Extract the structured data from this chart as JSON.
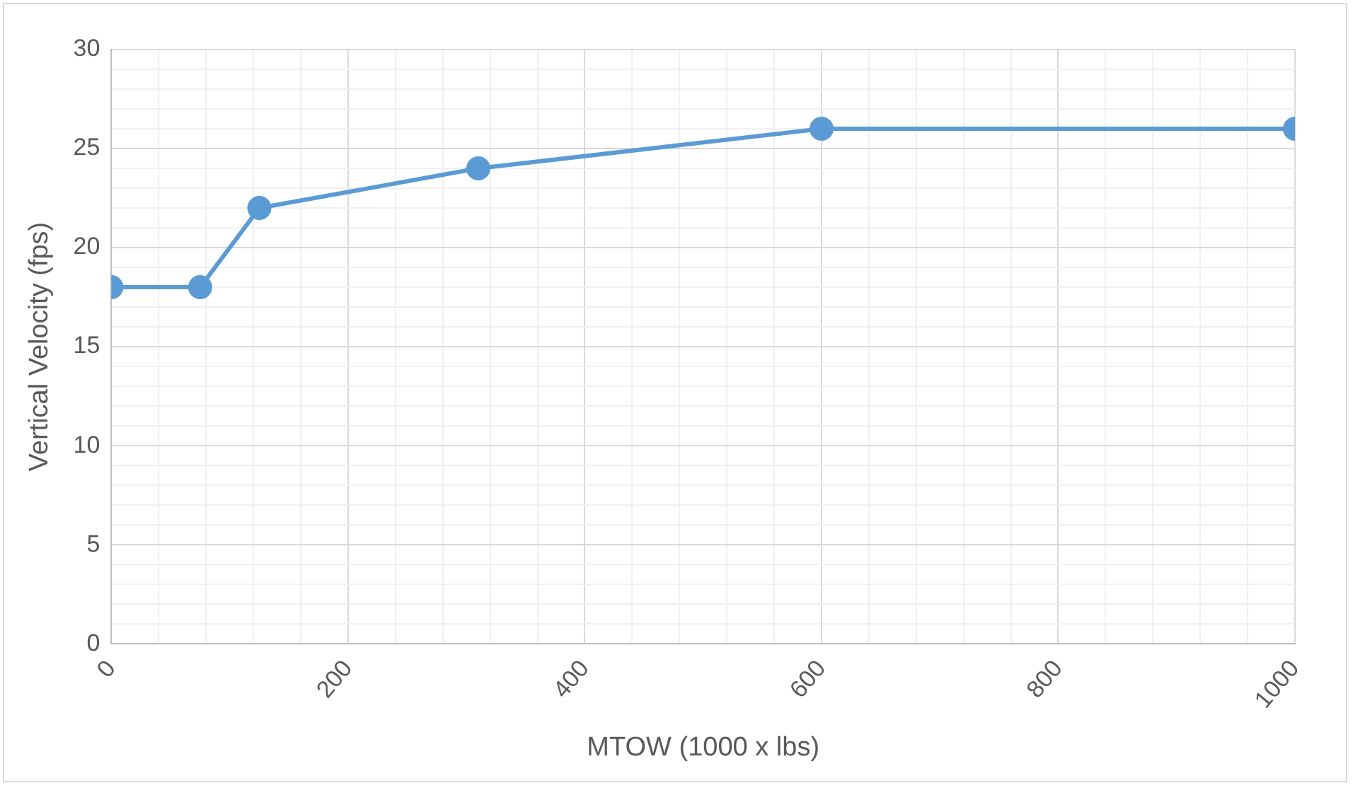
{
  "chart_data": {
    "type": "line",
    "xlabel": "MTOW (1000 x lbs)",
    "ylabel": "Vertical Velocity (fps)",
    "x": [
      0,
      75,
      125,
      310,
      600,
      1000
    ],
    "series": [
      {
        "color": "#5b9bd5",
        "values": [
          18,
          18,
          22,
          24,
          26,
          26
        ]
      }
    ],
    "xlim": [
      0,
      1000
    ],
    "xticks": [
      0,
      {
        "value": 40,
        "label": null
      },
      {
        "value": 80,
        "label": null
      },
      {
        "value": 120,
        "label": null
      },
      {
        "value": 160,
        "label": null
      },
      200,
      {
        "value": 240,
        "label": null
      },
      {
        "value": 280,
        "label": null
      },
      {
        "value": 320,
        "label": null
      },
      {
        "value": 360,
        "label": null
      },
      400,
      {
        "value": 440,
        "label": null
      },
      {
        "value": 480,
        "label": null
      },
      {
        "value": 520,
        "label": null
      },
      {
        "value": 560,
        "label": null
      },
      600,
      {
        "value": 640,
        "label": null
      },
      {
        "value": 680,
        "label": null
      },
      {
        "value": 720,
        "label": null
      },
      {
        "value": 760,
        "label": null
      },
      800,
      {
        "value": 840,
        "label": null
      },
      {
        "value": 880,
        "label": null
      },
      {
        "value": 920,
        "label": null
      },
      {
        "value": 960,
        "label": null
      },
      1000
    ],
    "ylim": [
      0,
      30
    ],
    "yticks": [
      0,
      {
        "value": 1,
        "label": null
      },
      {
        "value": 2,
        "label": null
      },
      {
        "value": 3,
        "label": null
      },
      {
        "value": 4,
        "label": null
      },
      5,
      {
        "value": 6,
        "label": null
      },
      {
        "value": 7,
        "label": null
      },
      {
        "value": 8,
        "label": null
      },
      {
        "value": 9,
        "label": null
      },
      10,
      {
        "value": 11,
        "label": null
      },
      {
        "value": 12,
        "label": null
      },
      {
        "value": 13,
        "label": null
      },
      {
        "value": 14,
        "label": null
      },
      15,
      {
        "value": 16,
        "label": null
      },
      {
        "value": 17,
        "label": null
      },
      {
        "value": 18,
        "label": null
      },
      {
        "value": 19,
        "label": null
      },
      20,
      {
        "value": 21,
        "label": null
      },
      {
        "value": 22,
        "label": null
      },
      {
        "value": 23,
        "label": null
      },
      {
        "value": 24,
        "label": null
      },
      25,
      {
        "value": 26,
        "label": null
      },
      {
        "value": 27,
        "label": null
      },
      {
        "value": 28,
        "label": null
      },
      {
        "value": 29,
        "label": null
      },
      30
    ],
    "grid": true,
    "marker": "circle",
    "line_style": "solid",
    "legend": false
  }
}
